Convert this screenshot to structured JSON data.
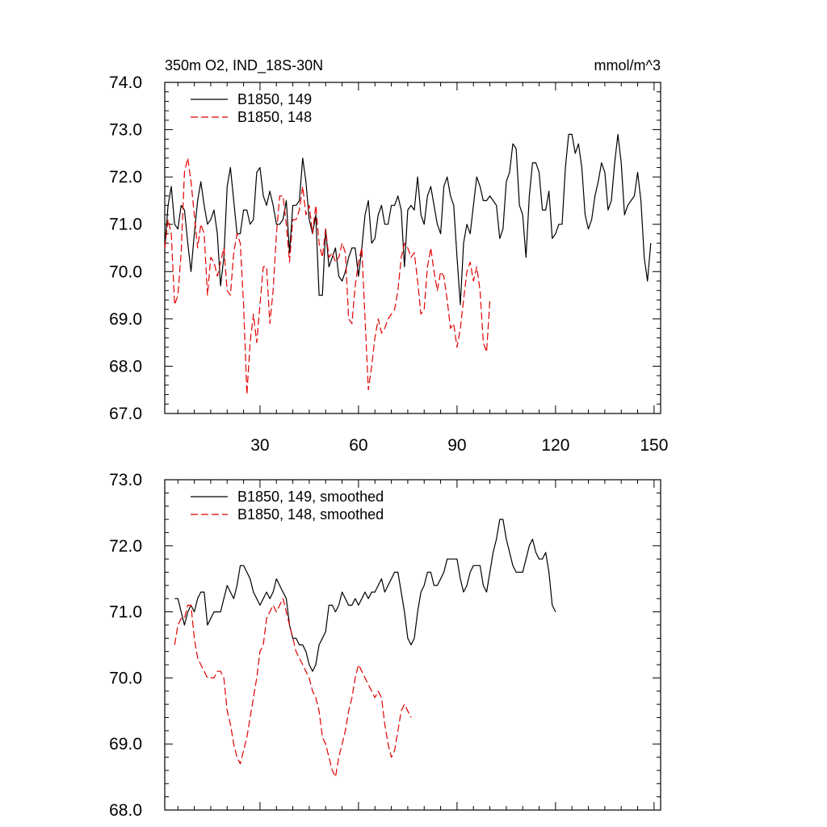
{
  "chart_data": [
    {
      "type": "line",
      "title": "350m O2, IND_18S-30N",
      "units_label": "mmol/m^3",
      "xlim": [
        1,
        152
      ],
      "ylim": [
        67,
        74
      ],
      "yticks": [
        "67.0",
        "68.0",
        "69.0",
        "70.0",
        "71.0",
        "72.0",
        "73.0",
        "74.0"
      ],
      "ytick_values": [
        67,
        68,
        69,
        70,
        71,
        72,
        73,
        74
      ],
      "xticks": [
        "30",
        "60",
        "90",
        "120",
        "150"
      ],
      "xtick_values": [
        30,
        60,
        90,
        120,
        150
      ],
      "legend_position": "top-left",
      "series": [
        {
          "name": "B1850, 149",
          "color": "#000000",
          "dash": "solid",
          "x_start": 1,
          "values": [
            70.5,
            71.4,
            71.8,
            71.0,
            70.9,
            71.4,
            71.3,
            70.6,
            70.0,
            70.8,
            71.5,
            71.9,
            71.4,
            71.0,
            71.1,
            71.3,
            70.8,
            69.7,
            70.3,
            71.8,
            72.2,
            71.5,
            70.8,
            70.8,
            71.3,
            71.3,
            71.0,
            71.1,
            72.1,
            72.2,
            71.6,
            71.4,
            71.7,
            71.4,
            71.0,
            71.0,
            71.1,
            71.5,
            70.4,
            71.4,
            71.4,
            71.5,
            72.4,
            71.9,
            71.1,
            70.8,
            71.2,
            69.5,
            69.5,
            70.9,
            70.1,
            70.3,
            70.5,
            69.9,
            69.8,
            70.0,
            70.3,
            70.5,
            70.5,
            69.9,
            70.5,
            71.2,
            71.5,
            70.6,
            70.7,
            71.2,
            71.4,
            71.0,
            71.0,
            71.4,
            71.4,
            71.6,
            71.3,
            70.1,
            71.3,
            71.4,
            71.3,
            72.0,
            71.2,
            71.0,
            71.6,
            71.8,
            71.4,
            71.0,
            70.8,
            71.8,
            72.0,
            71.6,
            71.4,
            70.3,
            69.3,
            70.6,
            71.0,
            70.8,
            71.4,
            72.0,
            71.8,
            71.5,
            71.5,
            71.6,
            71.5,
            71.4,
            70.7,
            70.9,
            71.9,
            72.1,
            72.7,
            72.6,
            71.4,
            71.2,
            70.3,
            71.6,
            72.3,
            72.3,
            72.1,
            71.3,
            71.3,
            71.7,
            70.7,
            70.8,
            71.0,
            71.0,
            72.2,
            72.9,
            72.9,
            72.5,
            72.7,
            72.2,
            71.2,
            70.9,
            71.1,
            71.6,
            71.9,
            72.3,
            72.1,
            71.3,
            71.5,
            72.3,
            72.9,
            72.3,
            71.2,
            71.4,
            71.5,
            71.6,
            72.1,
            71.5,
            70.3,
            69.8,
            70.6
          ]
        },
        {
          "name": "B1850, 148",
          "color": "#e00000",
          "dash": "dashed",
          "x_start": 1,
          "values": [
            70.5,
            71.1,
            70.8,
            69.3,
            69.5,
            70.4,
            72.1,
            72.4,
            71.9,
            71.2,
            70.5,
            71.0,
            70.8,
            69.5,
            70.3,
            70.2,
            69.9,
            70.2,
            70.5,
            69.6,
            69.5,
            70.4,
            70.8,
            70.6,
            69.3,
            67.4,
            68.5,
            69.1,
            68.5,
            69.3,
            70.1,
            70.1,
            68.9,
            69.6,
            70.8,
            71.6,
            71.6,
            71.0,
            70.2,
            71.1,
            71.1,
            71.3,
            71.8,
            71.2,
            71.4,
            70.8,
            71.4,
            70.6,
            70.3,
            70.9,
            70.3,
            70.4,
            70.2,
            70.3,
            70.6,
            70.4,
            69.0,
            68.9,
            69.7,
            70.2,
            70.5,
            69.0,
            67.5,
            68.0,
            68.6,
            69.0,
            68.7,
            68.8,
            69.0,
            69.1,
            69.2,
            69.6,
            70.3,
            70.6,
            70.5,
            70.3,
            70.4,
            69.8,
            69.1,
            69.2,
            70.1,
            70.5,
            70.0,
            69.6,
            70.0,
            69.9,
            69.4,
            68.8,
            68.9,
            68.4,
            68.8,
            69.4,
            70.0,
            70.2,
            69.8,
            70.1,
            69.6,
            68.5,
            68.3,
            69.4
          ]
        }
      ]
    },
    {
      "type": "line",
      "title": "",
      "xlim": [
        1,
        152
      ],
      "ylim": [
        68,
        73
      ],
      "yticks": [
        "68.0",
        "69.0",
        "70.0",
        "71.0",
        "72.0",
        "73.0"
      ],
      "ytick_values": [
        68,
        69,
        70,
        71,
        72,
        73
      ],
      "xticks": [],
      "xtick_values": [
        30,
        60,
        90,
        120,
        150
      ],
      "legend_position": "top-left",
      "series": [
        {
          "name": "B1850, 149, smoothed",
          "color": "#000000",
          "dash": "solid",
          "x_start": 4,
          "values": [
            71.2,
            71.2,
            71.0,
            70.8,
            71.0,
            71.1,
            71.0,
            71.2,
            71.3,
            71.3,
            70.8,
            70.9,
            71.0,
            71.0,
            71.0,
            71.2,
            71.4,
            71.3,
            71.2,
            71.4,
            71.7,
            71.7,
            71.6,
            71.5,
            71.3,
            71.2,
            71.1,
            71.2,
            71.3,
            71.2,
            71.3,
            71.5,
            71.4,
            71.3,
            71.2,
            70.8,
            70.6,
            70.6,
            70.5,
            70.5,
            70.4,
            70.2,
            70.1,
            70.2,
            70.5,
            70.6,
            70.7,
            71.1,
            71.1,
            71.0,
            71.1,
            71.3,
            71.2,
            71.1,
            71.1,
            71.2,
            71.1,
            71.2,
            71.3,
            71.2,
            71.3,
            71.3,
            71.4,
            71.5,
            71.3,
            71.4,
            71.5,
            71.6,
            71.6,
            71.3,
            71.0,
            70.6,
            70.5,
            70.6,
            71.0,
            71.3,
            71.4,
            71.6,
            71.6,
            71.4,
            71.4,
            71.5,
            71.6,
            71.8,
            71.8,
            71.8,
            71.8,
            71.5,
            71.3,
            71.4,
            71.6,
            71.7,
            71.7,
            71.7,
            71.4,
            71.3,
            71.6,
            71.9,
            72.1,
            72.4,
            72.4,
            72.1,
            71.9,
            71.7,
            71.6,
            71.6,
            71.6,
            71.8,
            72.0,
            72.1,
            71.9,
            71.8,
            71.8,
            71.9,
            71.6,
            71.1,
            71.0
          ]
        },
        {
          "name": "B1850, 148, smoothed",
          "color": "#e00000",
          "dash": "dashed",
          "x_start": 4,
          "values": [
            70.5,
            70.8,
            70.9,
            70.9,
            71.1,
            71.1,
            70.6,
            70.3,
            70.2,
            70.1,
            70.0,
            70.0,
            70.0,
            70.1,
            70.1,
            70.0,
            69.5,
            69.3,
            69.0,
            68.8,
            68.7,
            68.9,
            69.1,
            69.4,
            69.7,
            70.0,
            70.4,
            70.5,
            70.9,
            71.0,
            71.1,
            71.0,
            71.1,
            71.2,
            71.0,
            70.8,
            70.6,
            70.4,
            70.3,
            70.2,
            70.1,
            70.0,
            69.8,
            69.7,
            69.5,
            69.1,
            69.0,
            68.8,
            68.6,
            68.5,
            68.8,
            69.0,
            69.2,
            69.5,
            69.7,
            70.0,
            70.2,
            70.1,
            70.0,
            69.9,
            69.8,
            69.7,
            69.8,
            69.7,
            69.3,
            69.0,
            68.8,
            68.9,
            69.2,
            69.5,
            69.6,
            69.5,
            69.4
          ]
        }
      ]
    }
  ]
}
